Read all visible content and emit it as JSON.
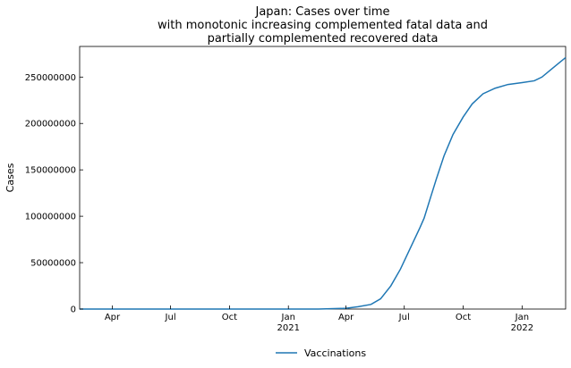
{
  "chart_data": {
    "type": "line",
    "title": [
      "Japan: Cases over time",
      "with monotonic increasing complemented fatal data and",
      "partially complemented recovered data"
    ],
    "xlabel": "",
    "ylabel": "Cases",
    "xlim": [
      "2020-02-10",
      "2022-03-10"
    ],
    "ylim": [
      0,
      283000000
    ],
    "x_ticks": [
      {
        "date": "2020-04-01",
        "label": "Apr",
        "sub": ""
      },
      {
        "date": "2020-07-01",
        "label": "Jul",
        "sub": ""
      },
      {
        "date": "2020-10-01",
        "label": "Oct",
        "sub": ""
      },
      {
        "date": "2021-01-01",
        "label": "Jan",
        "sub": "2021"
      },
      {
        "date": "2021-04-01",
        "label": "Apr",
        "sub": ""
      },
      {
        "date": "2021-07-01",
        "label": "Jul",
        "sub": ""
      },
      {
        "date": "2021-10-01",
        "label": "Oct",
        "sub": ""
      },
      {
        "date": "2022-01-01",
        "label": "Jan",
        "sub": "2022"
      }
    ],
    "y_ticks": [
      0,
      50000000,
      100000000,
      150000000,
      200000000,
      250000000
    ],
    "y_tick_labels": [
      "0",
      "50000000",
      "100000000",
      "150000000",
      "200000000",
      "250000000"
    ],
    "grid": false,
    "legend_position": "bottom-center",
    "series": [
      {
        "name": "Vaccinations",
        "color": "#1f77b4",
        "points": [
          [
            "2020-02-10",
            0
          ],
          [
            "2021-02-17",
            0
          ],
          [
            "2021-04-01",
            800000
          ],
          [
            "2021-04-20",
            2500000
          ],
          [
            "2021-05-10",
            5000000
          ],
          [
            "2021-05-25",
            11000000
          ],
          [
            "2021-06-10",
            25000000
          ],
          [
            "2021-06-25",
            43000000
          ],
          [
            "2021-07-10",
            65000000
          ],
          [
            "2021-07-25",
            87000000
          ],
          [
            "2021-08-01",
            98000000
          ],
          [
            "2021-08-10",
            118000000
          ],
          [
            "2021-08-20",
            140000000
          ],
          [
            "2021-09-01",
            165000000
          ],
          [
            "2021-09-15",
            188000000
          ],
          [
            "2021-10-01",
            207000000
          ],
          [
            "2021-10-15",
            221000000
          ],
          [
            "2021-11-01",
            232000000
          ],
          [
            "2021-11-20",
            238000000
          ],
          [
            "2021-12-10",
            242000000
          ],
          [
            "2022-01-01",
            244000000
          ],
          [
            "2022-01-20",
            246000000
          ],
          [
            "2022-02-01",
            250000000
          ],
          [
            "2022-02-15",
            258000000
          ],
          [
            "2022-03-01",
            266000000
          ],
          [
            "2022-03-10",
            271000000
          ]
        ]
      }
    ]
  }
}
